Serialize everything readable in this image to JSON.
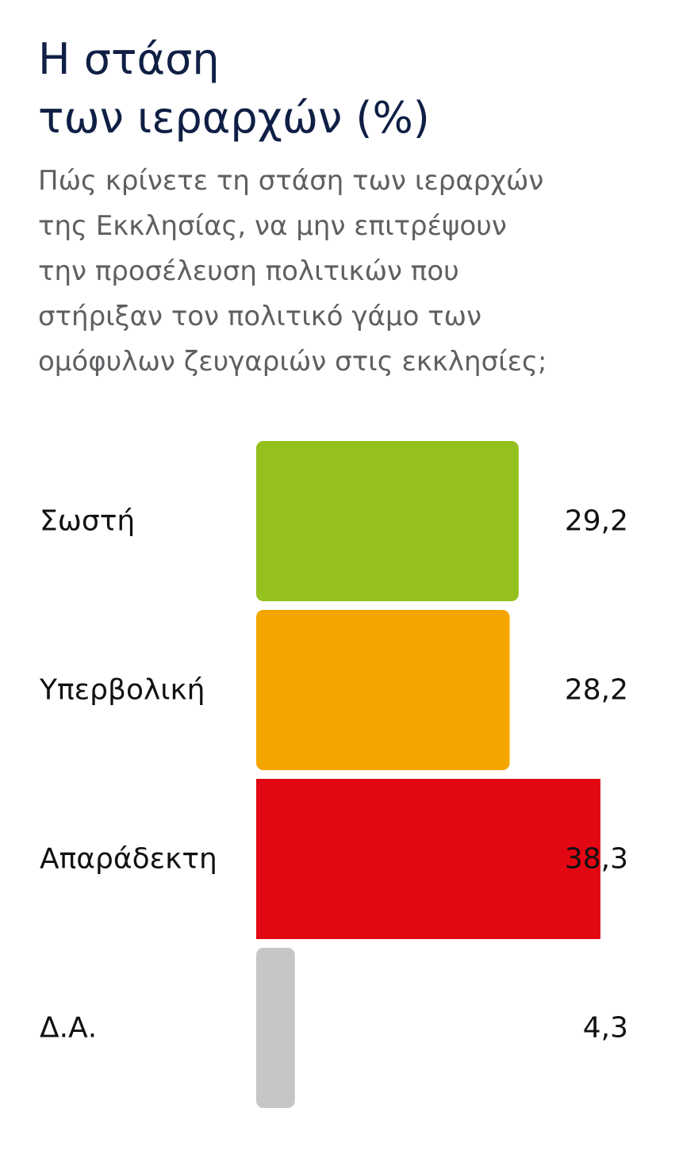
{
  "chart_data": {
    "type": "bar",
    "orientation": "horizontal",
    "title_lines": [
      "Η στάση",
      "των ιεραρχών (%)"
    ],
    "subtitle_lines": [
      "Πώς κρίνετε τη στάση των ιεραρχών",
      "της Εκκλησίας, να μην επιτρέψουν",
      "την προσέλευση πολιτικών που",
      "στήριξαν τον πολιτικό γάμο των",
      "ομόφυλων ζευγαριών στις εκκλησίες;"
    ],
    "categories": [
      "Σωστή",
      "Υπερβολική",
      "Απαράδεκτη",
      "Δ.Α."
    ],
    "values": [
      29.2,
      28.2,
      38.3,
      4.3
    ],
    "value_labels": [
      "29,2",
      "28,2",
      "38,3",
      "4,3"
    ],
    "colors": [
      "#95c11f",
      "#f5a500",
      "#e30613",
      "#c6c6c6"
    ],
    "xlim": [
      0,
      38.3
    ],
    "grid": false,
    "legend": "none"
  }
}
